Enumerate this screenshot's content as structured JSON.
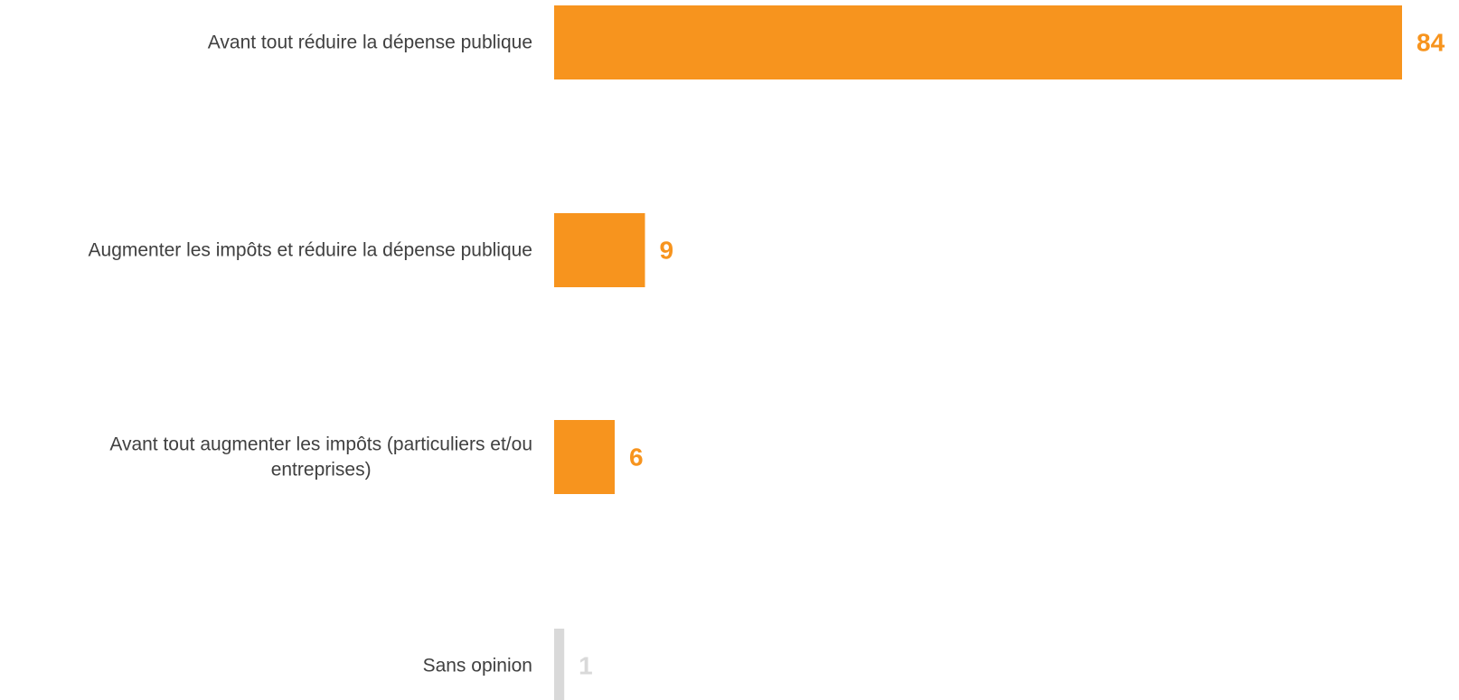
{
  "chart_data": {
    "type": "bar",
    "orientation": "horizontal",
    "categories": [
      [
        "Avant tout réduire la dépense publique"
      ],
      [
        "Augmenter les impôts et réduire la dépense publique"
      ],
      [
        "Avant tout augmenter les impôts (particuliers et/ou",
        "entreprises)"
      ],
      [
        "Sans opinion"
      ]
    ],
    "values": [
      84,
      9,
      6,
      1
    ],
    "xlim": [
      0,
      84
    ],
    "grid": false,
    "title": "",
    "xlabel": "",
    "ylabel": "",
    "colors": [
      "#F7941E",
      "#F7941E",
      "#F7941E",
      "#D9D9D9"
    ],
    "value_label_colors": [
      "#F7941E",
      "#F7941E",
      "#F7941E",
      "#D9D9D9"
    ]
  }
}
